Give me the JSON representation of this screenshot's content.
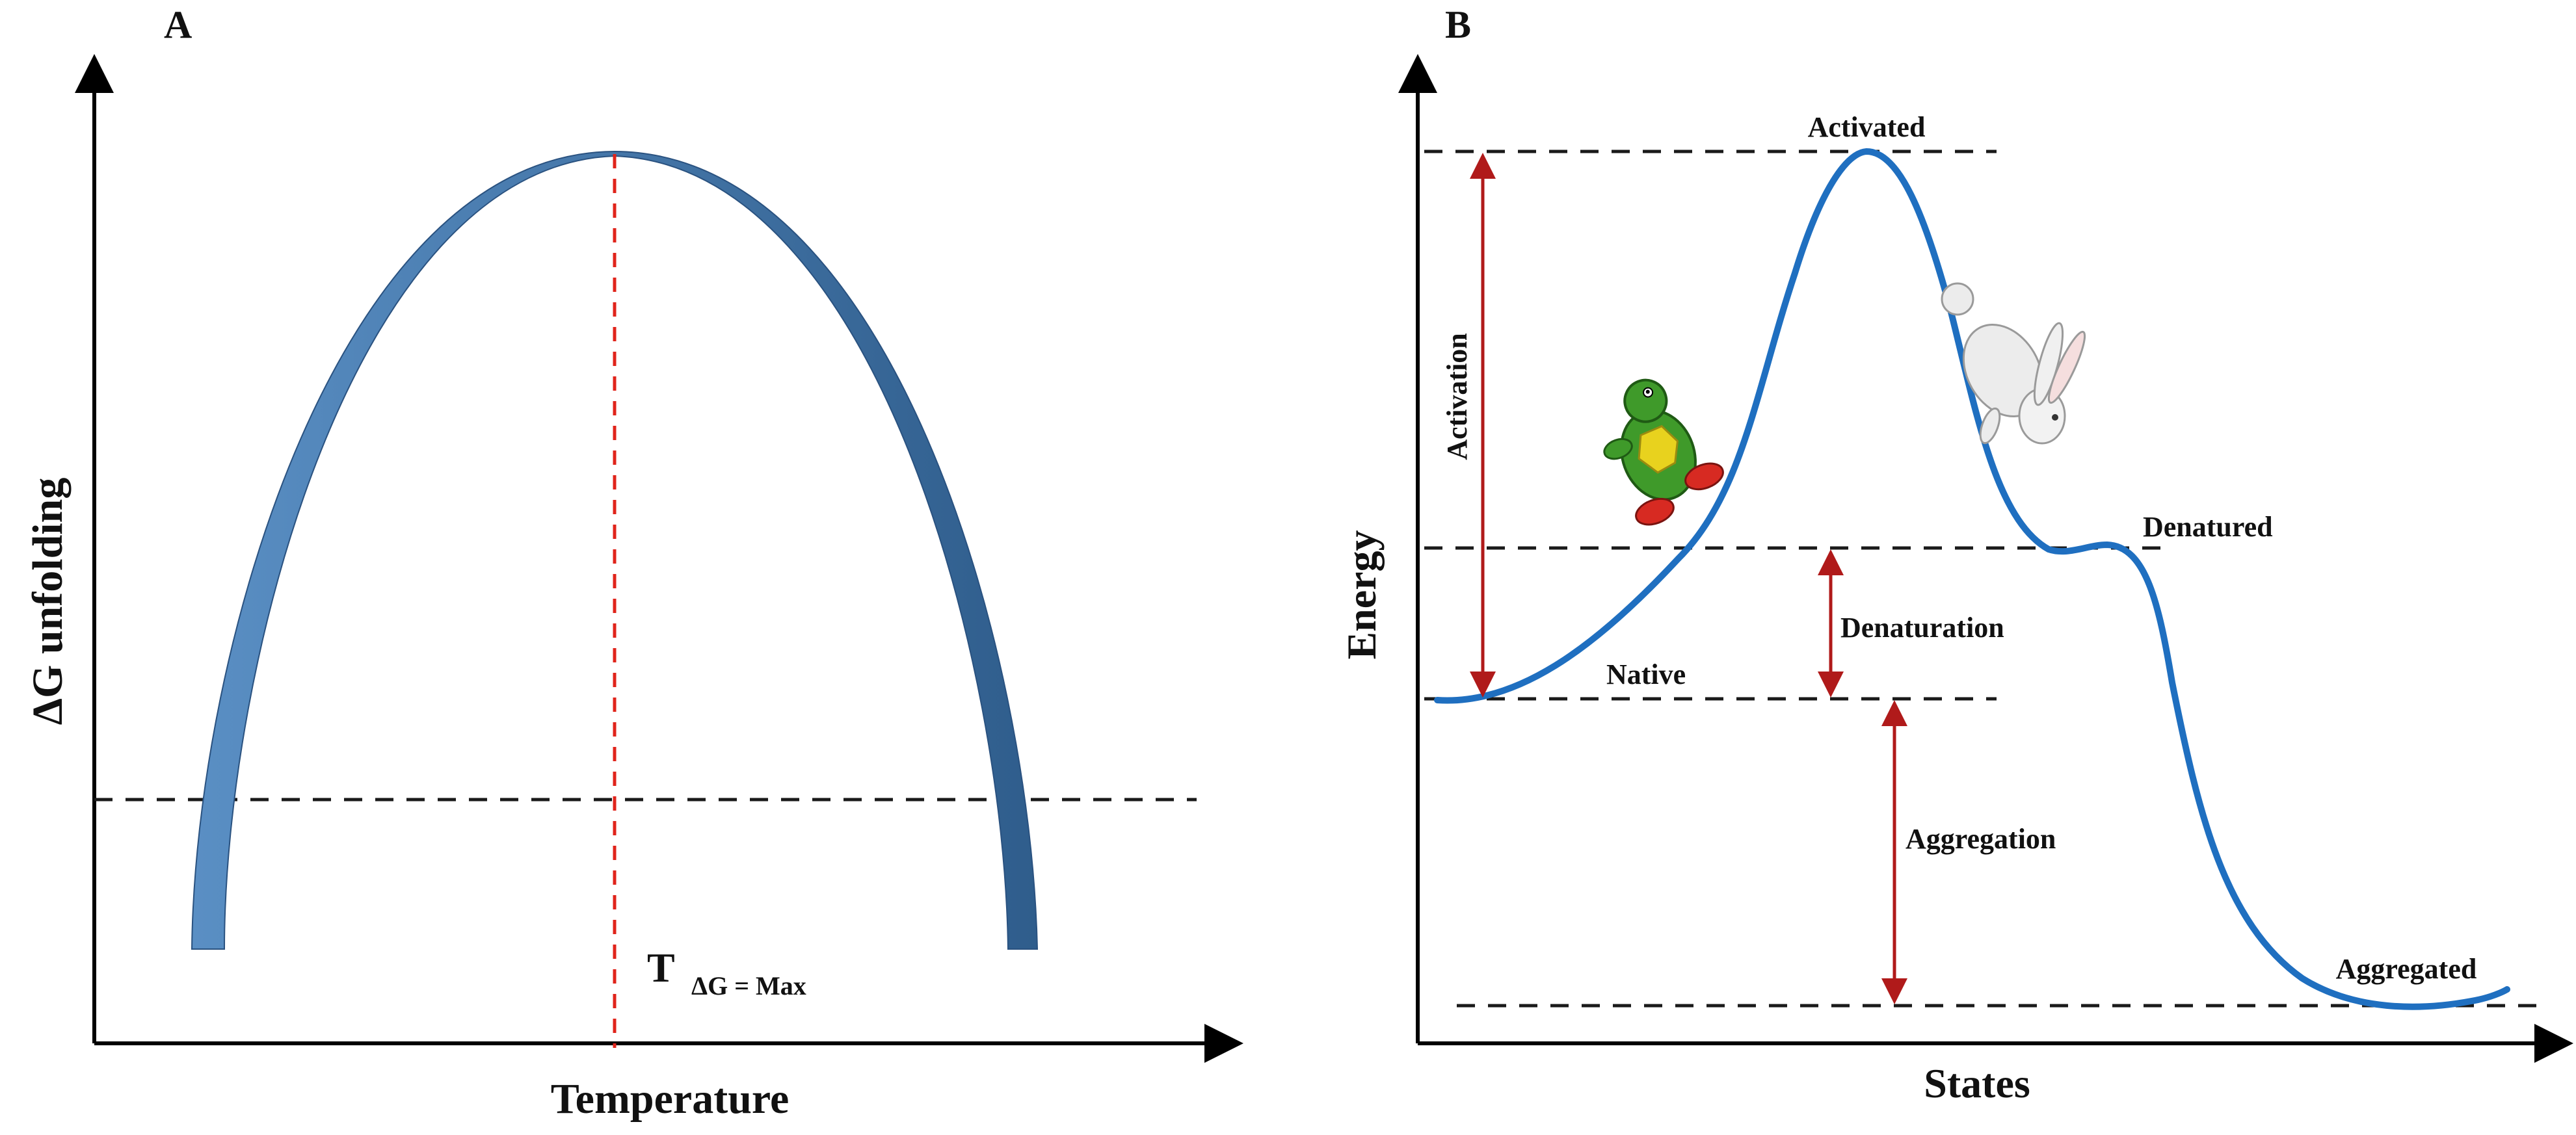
{
  "colors": {
    "axis": "#000000",
    "arc_light": "#5a8fc4",
    "arc_dark": "#2f5d8c",
    "curve": "#1f6fc0",
    "red_dash": "#e0241b",
    "arrow_red": "#b01a1a",
    "dashed_line": "#1a1a1a"
  },
  "panel_a": {
    "label": "A",
    "ylabel": "ΔG unfolding",
    "xlabel": "Temperature",
    "tmax_main": "T",
    "tmax_sub": "ΔG = Max"
  },
  "panel_b": {
    "label": "B",
    "ylabel": "Energy",
    "xlabel": "States",
    "states": {
      "activated": "Activated",
      "denatured": "Denatured",
      "native": "Native",
      "aggregated": "Aggregated"
    },
    "transitions": {
      "activation": "Activation",
      "denaturation": "Denaturation",
      "aggregation": "Aggregation"
    },
    "icons": [
      "turtle-icon",
      "rabbit-icon"
    ]
  }
}
